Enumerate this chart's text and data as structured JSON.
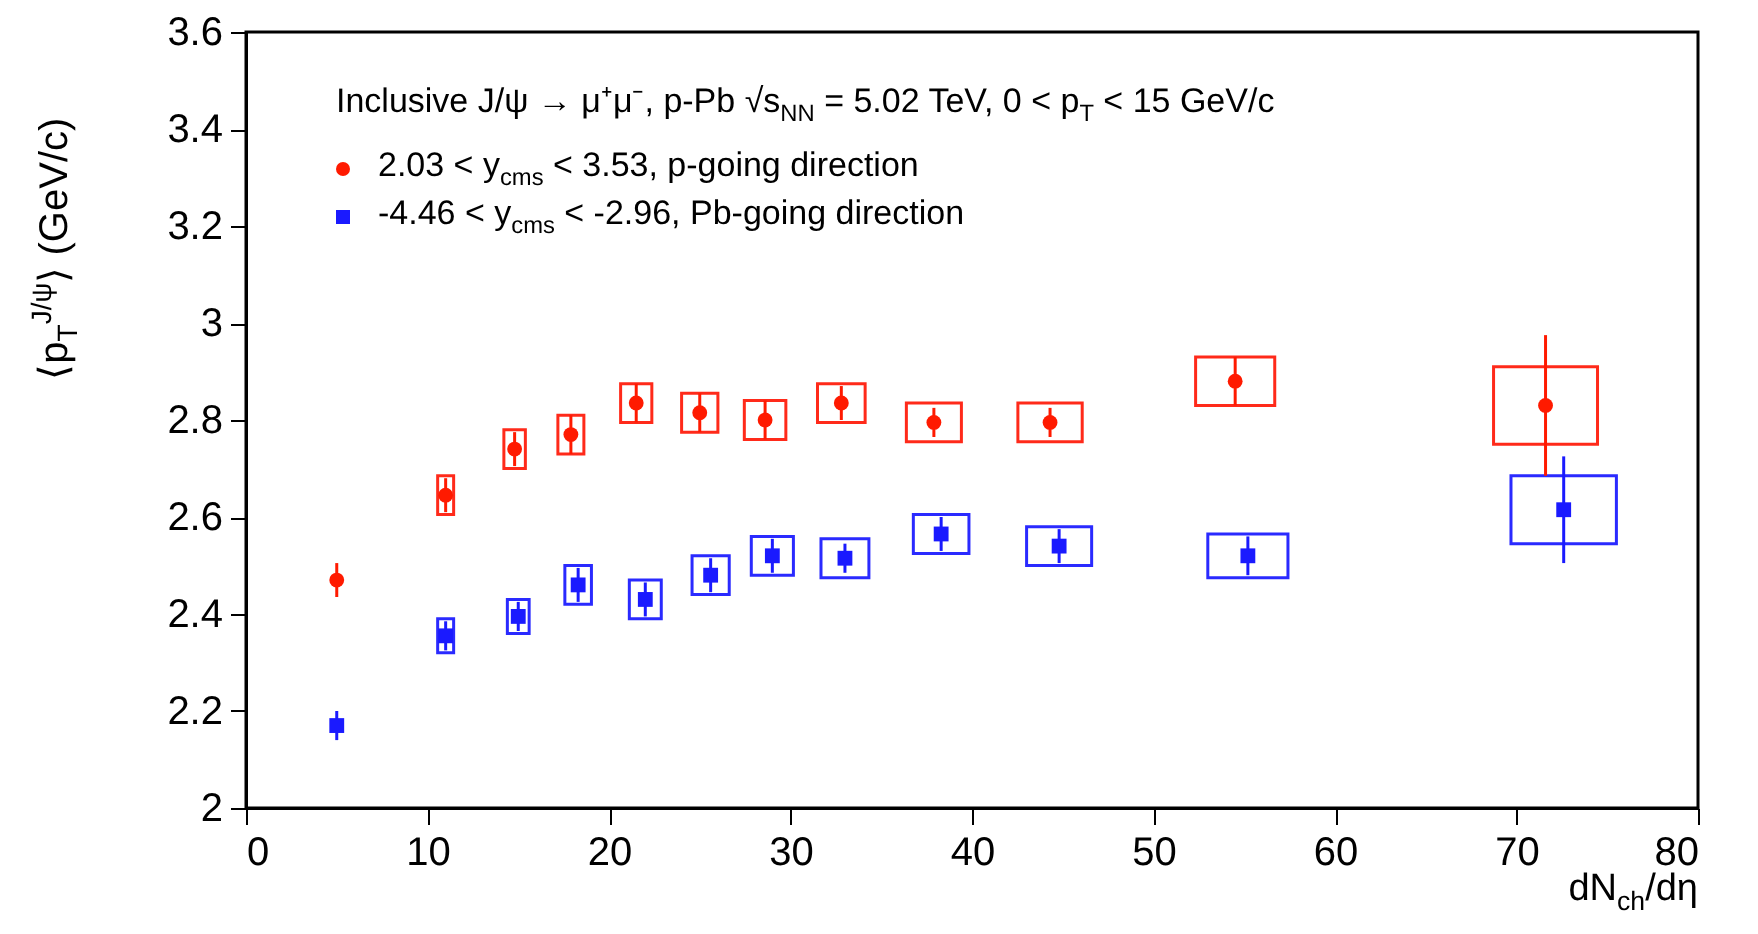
{
  "chart_data": {
    "type": "scatter",
    "xlabel": "dN$_{ch}$/dη",
    "ylabel": "⟨p$_{T}$$^{J/ψ}$⟩ (GeV/c)",
    "annotations": [
      "Inclusive J/ψ → μ⁺μ⁻, p-Pb √s$_{NN}$ = 5.02 TeV, 0 < p$_{T}$ < 15 GeV/c"
    ],
    "xlim": [
      0,
      80
    ],
    "xticks": [
      0,
      10,
      20,
      30,
      40,
      50,
      60,
      70,
      80
    ],
    "ylim": [
      2,
      3.6
    ],
    "yticks": [
      2,
      2.2,
      2.4,
      2.6,
      2.8,
      3,
      3.2,
      3.4,
      3.6
    ],
    "grid": false,
    "legend": "top left",
    "series": [
      {
        "type": "bar",
        "color": "#ff2a1a",
        "x": [
          11,
          14.8,
          17.9,
          21.5,
          25,
          28.6,
          32.8,
          37.9,
          44.3,
          54.5,
          71.6
        ],
        "base": [
          2.605,
          2.7,
          2.73,
          2.795,
          2.775,
          2.76,
          2.795,
          2.755,
          2.755,
          2.83,
          2.75
        ],
        "values": [
          0.08,
          0.08,
          0.08,
          0.08,
          0.08,
          0.08,
          0.08,
          0.08,
          0.08,
          0.1,
          0.16
        ]
      },
      {
        "type": "bar",
        "color": "#2a2aff",
        "x": [
          11,
          15,
          18.3,
          22,
          25.6,
          29,
          33,
          38.3,
          44.8,
          55.2,
          72.6
        ],
        "base": [
          2.32,
          2.36,
          2.42,
          2.39,
          2.44,
          2.48,
          2.475,
          2.525,
          2.5,
          2.475,
          2.545
        ],
        "values": [
          0.07,
          0.07,
          0.08,
          0.08,
          0.08,
          0.08,
          0.08,
          0.08,
          0.08,
          0.09,
          0.14
        ]
      },
      {
        "name": "2.03 < y$_{cms}$ < 3.53, p-going direction",
        "color": "#ff1a00",
        "marker": "circle",
        "x": [
          5,
          11,
          14.8,
          17.9,
          21.5,
          25,
          28.6,
          32.8,
          37.9,
          44.3,
          54.5,
          71.6
        ],
        "values": [
          2.47,
          2.645,
          2.74,
          2.77,
          2.835,
          2.815,
          2.8,
          2.835,
          2.795,
          2.795,
          2.88,
          2.83
        ],
        "errors": [
          0.035,
          0.035,
          0.035,
          0.04,
          0.04,
          0.04,
          0.04,
          0.035,
          0.03,
          0.03,
          0.05,
          0.145
        ]
      },
      {
        "name": "-4.46 < y$_{cms}$ < -2.96, Pb-going direction",
        "color": "#1a1aff",
        "marker": "square",
        "x": [
          5,
          11,
          15,
          18.3,
          22,
          25.6,
          29,
          33,
          38.3,
          44.8,
          55.2,
          72.6
        ],
        "values": [
          2.17,
          2.355,
          2.395,
          2.46,
          2.43,
          2.48,
          2.52,
          2.515,
          2.565,
          2.54,
          2.52,
          2.615
        ],
        "errors": [
          0.03,
          0.03,
          0.03,
          0.035,
          0.035,
          0.035,
          0.035,
          0.03,
          0.035,
          0.035,
          0.04,
          0.11
        ]
      }
    ]
  }
}
